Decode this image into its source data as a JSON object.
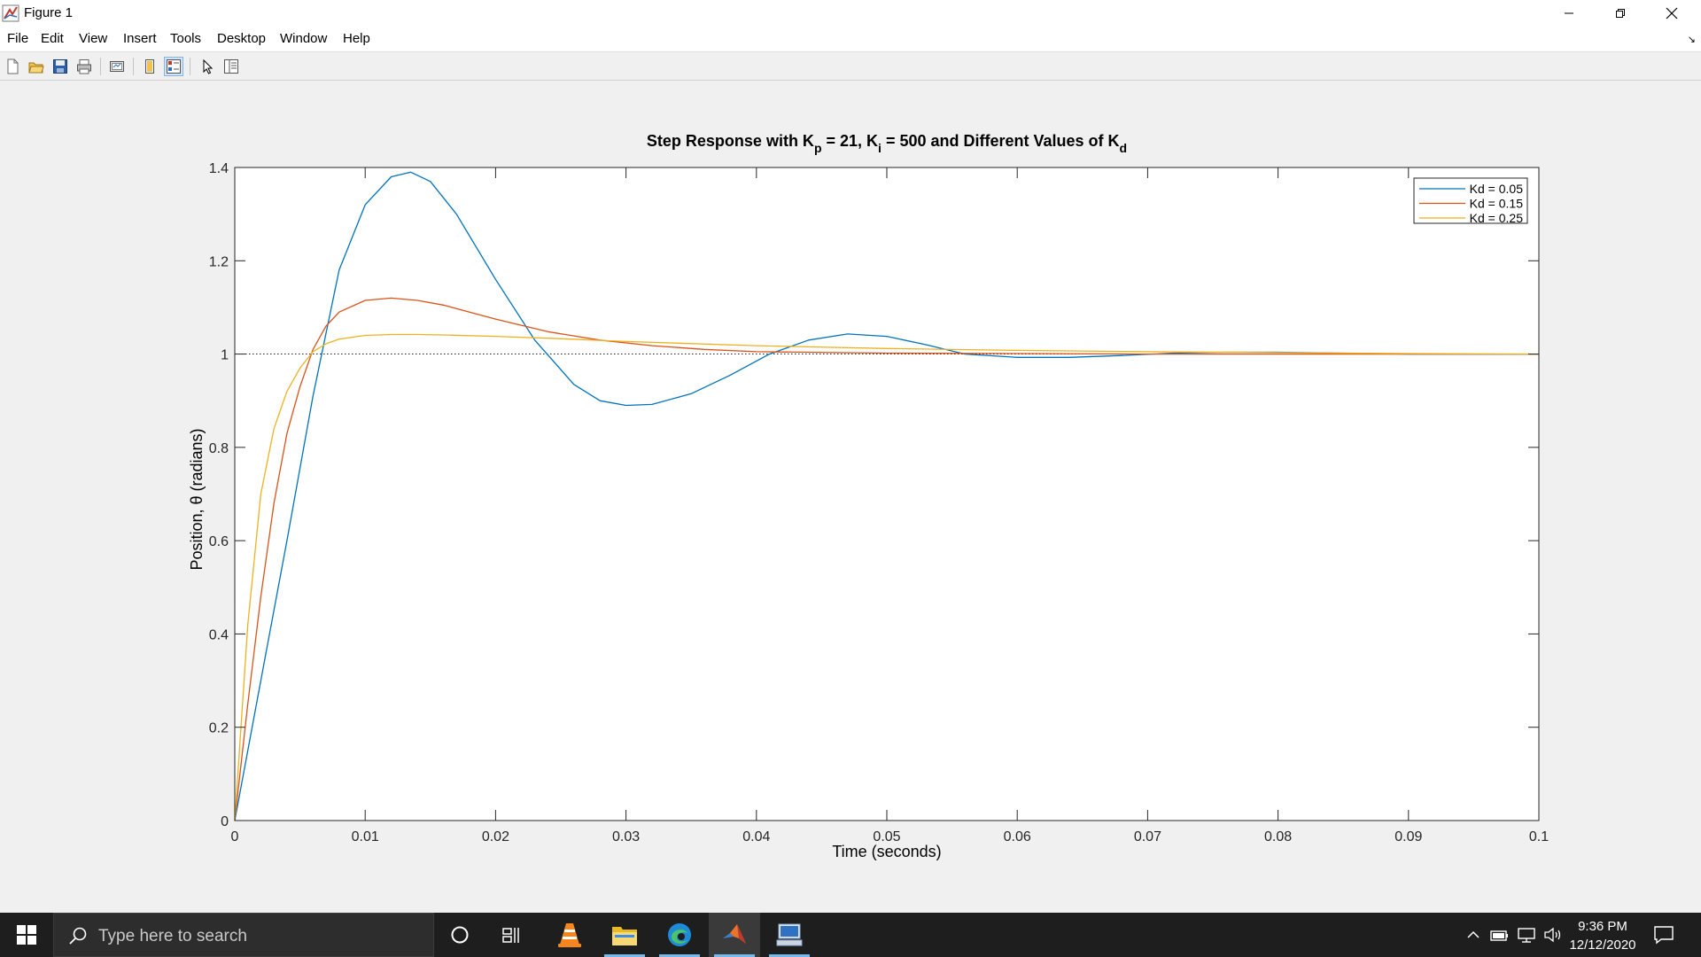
{
  "window": {
    "title": "Figure 1",
    "icons": {
      "app": "matlab-figure-icon",
      "minimize": "minimize-icon",
      "maximize": "restore-icon",
      "close": "close-icon"
    }
  },
  "menu": [
    "File",
    "Edit",
    "View",
    "Insert",
    "Tools",
    "Desktop",
    "Window",
    "Help"
  ],
  "toolbar": {
    "buttons": [
      "new-figure-icon",
      "open-file-icon",
      "save-figure-icon",
      "print-figure-icon",
      "link-plot-icon",
      "hide-plot-tools-icon",
      "show-plot-tools-icon",
      "edit-plot-arrow-icon",
      "property-inspector-icon"
    ]
  },
  "chart_data": {
    "type": "line",
    "title": {
      "parts": [
        {
          "text": "Step Response with K"
        },
        {
          "text": "p",
          "sub": true
        },
        {
          "text": " = 21, K"
        },
        {
          "text": "i",
          "sub": true
        },
        {
          "text": " = 500 and Different Values of K"
        },
        {
          "text": "d",
          "sub": true
        }
      ]
    },
    "xlabel": "Time (seconds)",
    "ylabel": "Position, θ (radians)",
    "xlim": [
      0,
      0.1
    ],
    "ylim": [
      0,
      1.4
    ],
    "xticks": [
      0,
      0.01,
      0.02,
      0.03,
      0.04,
      0.05,
      0.06,
      0.07,
      0.08,
      0.09,
      0.1
    ],
    "xtick_labels": [
      "0",
      "0.01",
      "0.02",
      "0.03",
      "0.04",
      "0.05",
      "0.06",
      "0.07",
      "0.08",
      "0.09",
      "0.1"
    ],
    "yticks": [
      0,
      0.2,
      0.4,
      0.6,
      0.8,
      1,
      1.2,
      1.4
    ],
    "ytick_labels": [
      "0",
      "0.2",
      "0.4",
      "0.6",
      "0.8",
      "1",
      "1.2",
      "1.4"
    ],
    "grid": false,
    "reference_line": {
      "y": 1,
      "style": "dotted"
    },
    "legend_position": "top-right",
    "series": [
      {
        "name": "Kd = 0.05",
        "color": "#0072BD",
        "x": [
          0,
          0.002,
          0.004,
          0.006,
          0.008,
          0.01,
          0.012,
          0.0135,
          0.015,
          0.017,
          0.02,
          0.023,
          0.026,
          0.028,
          0.03,
          0.032,
          0.035,
          0.038,
          0.041,
          0.044,
          0.047,
          0.05,
          0.053,
          0.056,
          0.06,
          0.064,
          0.068,
          0.072,
          0.076,
          0.08,
          0.085,
          0.09,
          0.095,
          0.1
        ],
        "y": [
          0,
          0.3,
          0.6,
          0.91,
          1.18,
          1.32,
          1.38,
          1.39,
          1.37,
          1.3,
          1.16,
          1.03,
          0.935,
          0.9,
          0.89,
          0.892,
          0.915,
          0.955,
          1.0,
          1.03,
          1.043,
          1.038,
          1.02,
          1.0,
          0.993,
          0.993,
          0.997,
          1.002,
          1.004,
          1.004,
          1.002,
          1.0,
          1.0,
          1.0
        ]
      },
      {
        "name": "Kd = 0.15",
        "color": "#D95319",
        "x": [
          0,
          0.001,
          0.002,
          0.003,
          0.004,
          0.005,
          0.006,
          0.007,
          0.008,
          0.01,
          0.012,
          0.014,
          0.016,
          0.018,
          0.02,
          0.024,
          0.028,
          0.032,
          0.036,
          0.04,
          0.05,
          0.06,
          0.07,
          0.08,
          0.09,
          0.1
        ],
        "y": [
          0,
          0.25,
          0.48,
          0.68,
          0.83,
          0.93,
          1.01,
          1.06,
          1.09,
          1.115,
          1.12,
          1.115,
          1.105,
          1.09,
          1.075,
          1.048,
          1.03,
          1.018,
          1.01,
          1.005,
          1.002,
          1.001,
          1.0,
          1.0,
          1.0,
          1.0
        ]
      },
      {
        "name": "Kd = 0.25",
        "color": "#EDB120",
        "x": [
          0,
          0.001,
          0.002,
          0.003,
          0.004,
          0.005,
          0.006,
          0.007,
          0.008,
          0.01,
          0.012,
          0.014,
          0.016,
          0.02,
          0.025,
          0.03,
          0.04,
          0.05,
          0.06,
          0.07,
          0.08,
          0.09,
          0.1
        ],
        "y": [
          0,
          0.42,
          0.7,
          0.84,
          0.92,
          0.97,
          1.005,
          1.022,
          1.032,
          1.04,
          1.042,
          1.042,
          1.041,
          1.038,
          1.033,
          1.027,
          1.018,
          1.012,
          1.008,
          1.005,
          1.003,
          1.001,
          1.0
        ]
      }
    ]
  },
  "taskbar": {
    "search_placeholder": "Type here to search",
    "apps": [
      "cortana-icon",
      "task-view-icon",
      "vlc-icon",
      "file-explorer-icon",
      "edge-icon",
      "matlab-icon",
      "remote-desktop-icon"
    ],
    "time": "9:36 PM",
    "date": "12/12/2020",
    "tray": [
      "show-hidden-icons-icon",
      "battery-icon",
      "network-icon",
      "volume-icon",
      "notifications-icon"
    ]
  }
}
